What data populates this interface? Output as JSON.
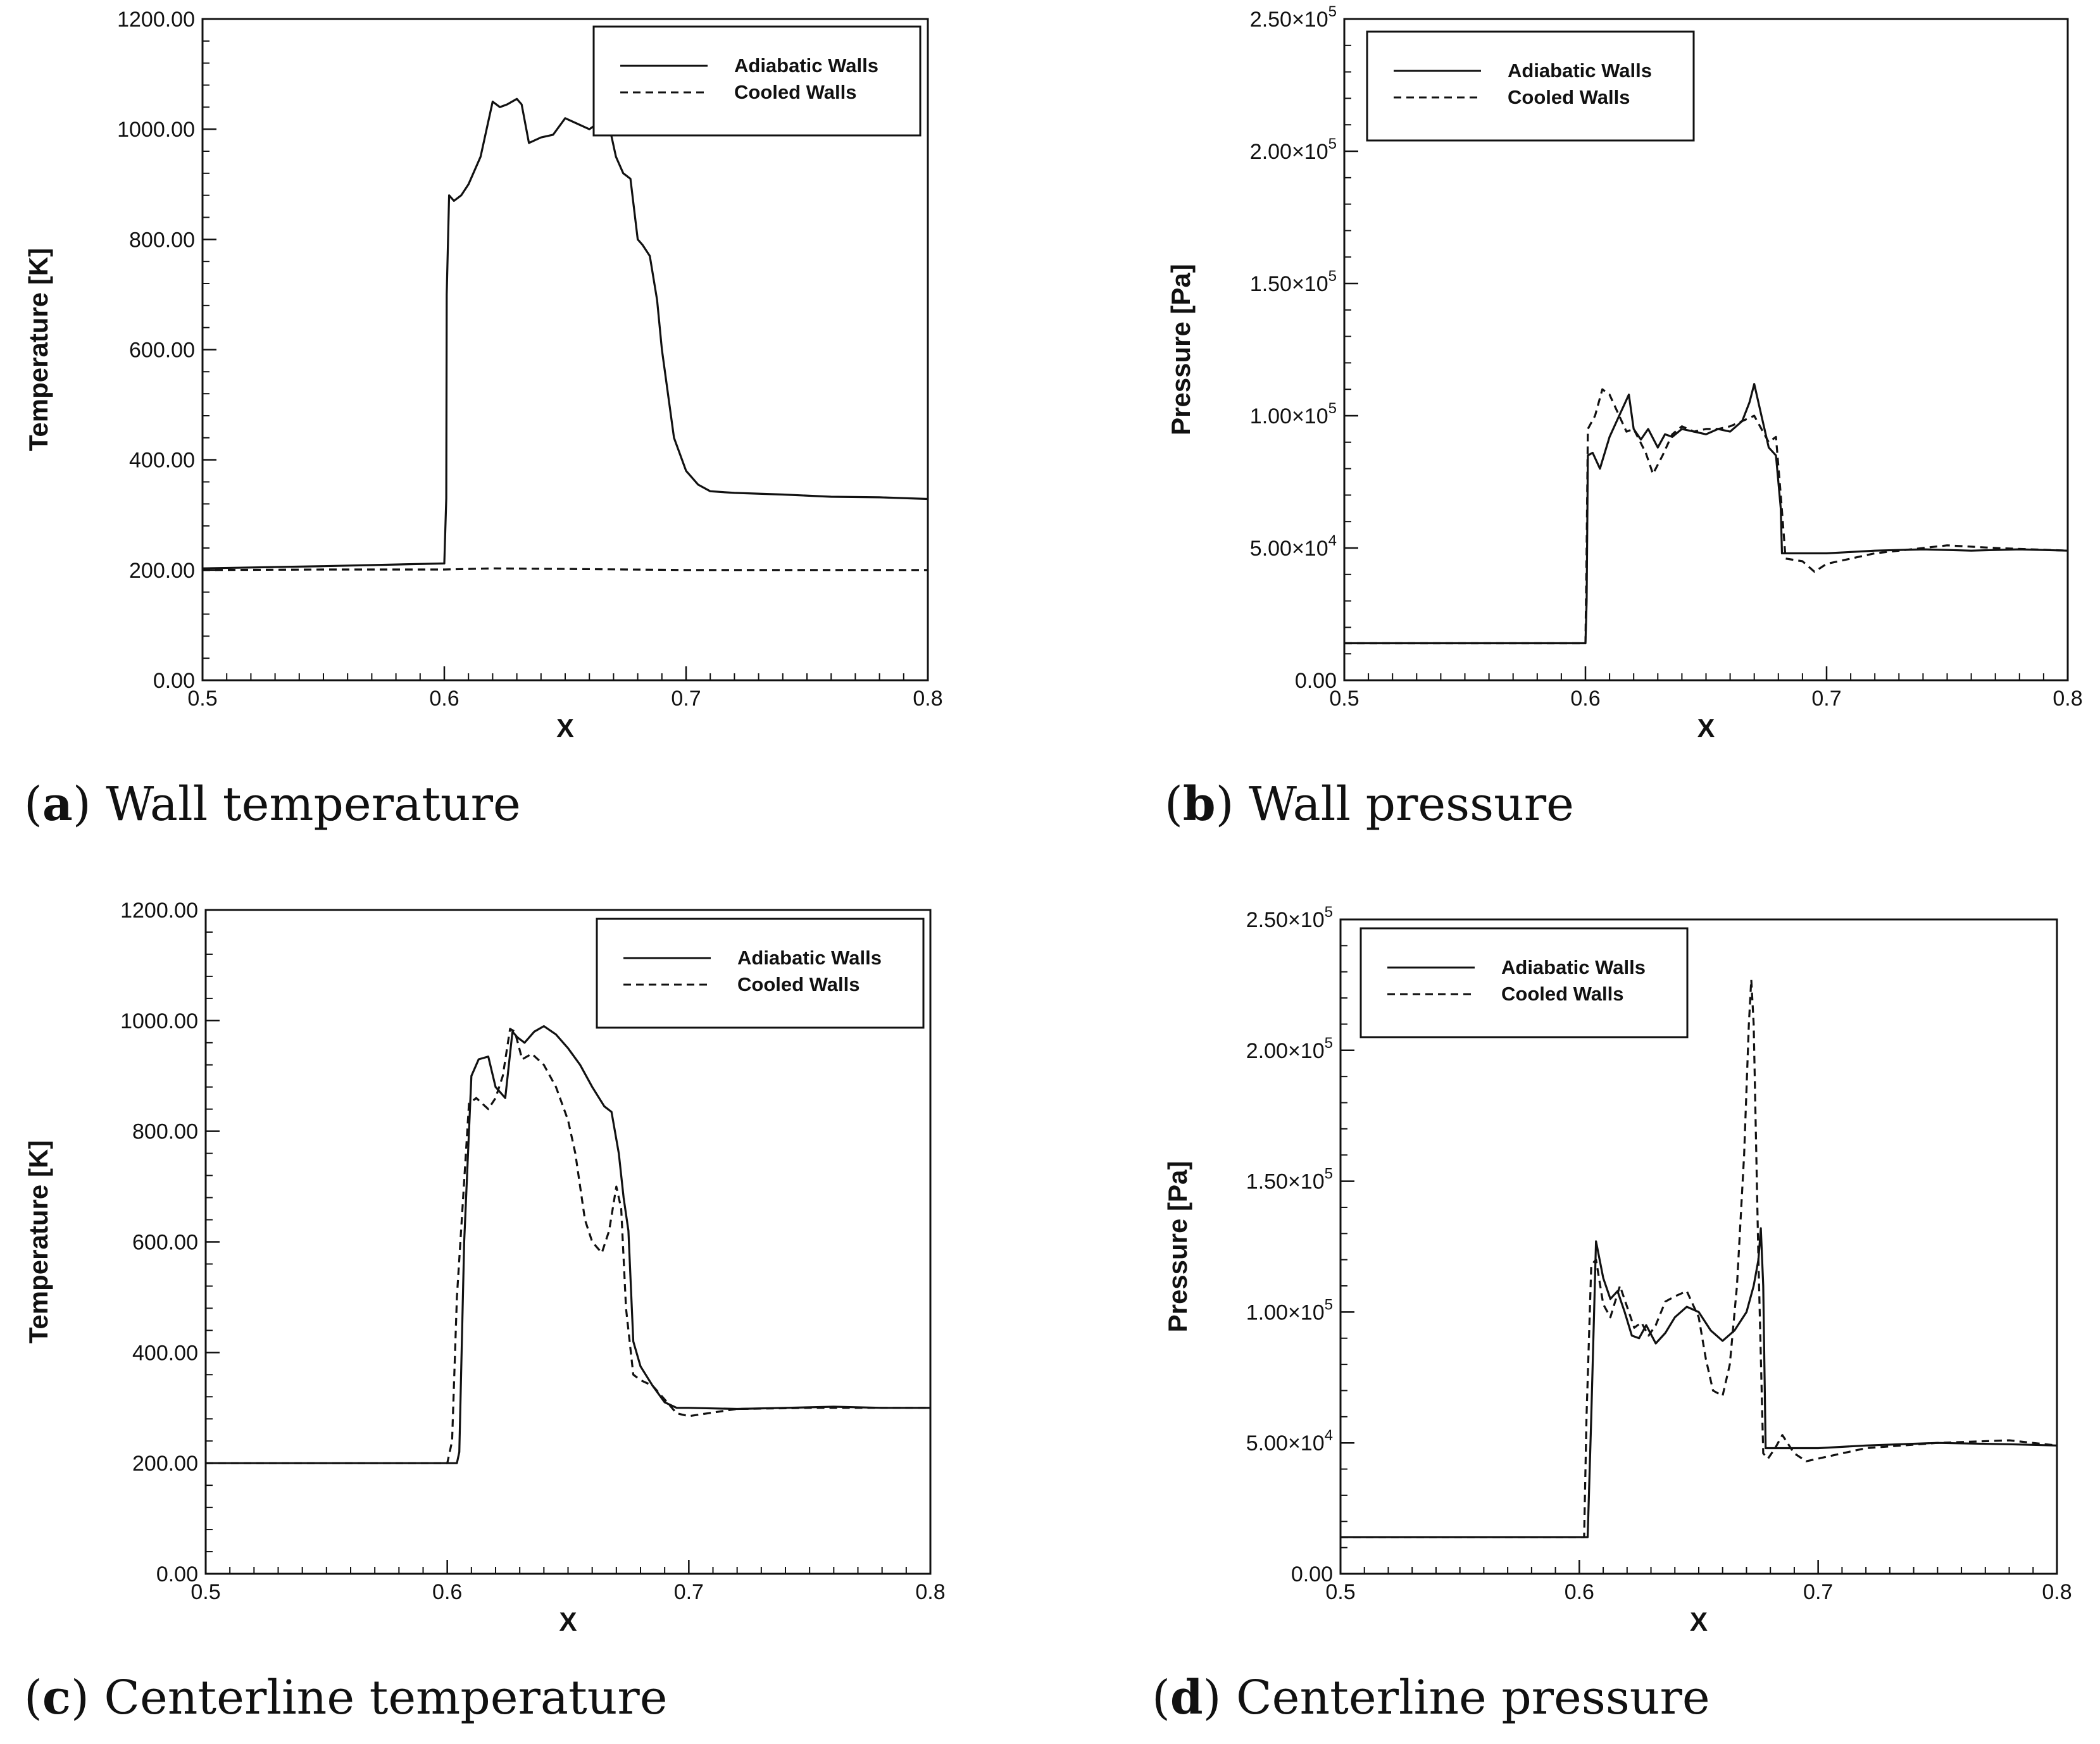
{
  "figure": {
    "captions": [
      {
        "letter": "a",
        "text": "Wall temperature"
      },
      {
        "letter": "b",
        "text": "Wall pressure"
      },
      {
        "letter": "c",
        "text": "Centerline temperature"
      },
      {
        "letter": "d",
        "text": "Centerline pressure"
      }
    ]
  },
  "chart_data": [
    {
      "id": "a",
      "type": "line",
      "title": "",
      "xlabel": "X",
      "ylabel": "Temperature [K]",
      "xlim": [
        0.5,
        0.8
      ],
      "ylim": [
        0,
        1200
      ],
      "xticks": [
        0.5,
        0.6,
        0.7,
        0.8
      ],
      "xtick_labels": [
        "0.5",
        "0.6",
        "0.7",
        "0.8"
      ],
      "yticks": [
        0,
        200,
        400,
        600,
        800,
        1000,
        1200
      ],
      "ytick_labels": [
        "0.00",
        "200.00",
        "400.00",
        "600.00",
        "800.00",
        "1000.00",
        "1200.00"
      ],
      "legend": "top-right",
      "series": [
        {
          "name": "Adiabatic Walls",
          "style": "solid",
          "x": [
            0.5,
            0.55,
            0.6,
            0.6008,
            0.601,
            0.602,
            0.604,
            0.607,
            0.61,
            0.615,
            0.62,
            0.623,
            0.626,
            0.63,
            0.632,
            0.635,
            0.64,
            0.645,
            0.65,
            0.655,
            0.66,
            0.665,
            0.668,
            0.671,
            0.674,
            0.677,
            0.68,
            0.682,
            0.685,
            0.688,
            0.69,
            0.695,
            0.7,
            0.705,
            0.71,
            0.72,
            0.74,
            0.76,
            0.78,
            0.8
          ],
          "y": [
            203,
            207,
            212,
            330,
            700,
            880,
            870,
            880,
            900,
            950,
            1050,
            1040,
            1045,
            1055,
            1045,
            975,
            985,
            990,
            1020,
            1010,
            1000,
            1015,
            1010,
            950,
            920,
            910,
            800,
            790,
            770,
            690,
            600,
            440,
            380,
            355,
            343,
            340,
            337,
            333,
            332,
            329
          ]
        },
        {
          "name": "Cooled Walls",
          "style": "dashed",
          "x": [
            0.5,
            0.55,
            0.6,
            0.62,
            0.65,
            0.7,
            0.75,
            0.8
          ],
          "y": [
            200,
            201,
            201,
            203,
            202,
            200,
            200,
            200
          ]
        }
      ]
    },
    {
      "id": "b",
      "type": "line",
      "title": "",
      "xlabel": "X",
      "ylabel": "Pressure [Pa]",
      "xlim": [
        0.5,
        0.8
      ],
      "ylim": [
        0,
        250000
      ],
      "xticks": [
        0.5,
        0.6,
        0.7,
        0.8
      ],
      "xtick_labels": [
        "0.5",
        "0.6",
        "0.7",
        "0.8"
      ],
      "yticks": [
        0,
        50000,
        100000,
        150000,
        200000,
        250000
      ],
      "ytick_labels": [
        {
          "m": "0.00",
          "e": ""
        },
        {
          "m": "5.00×10",
          "e": "4"
        },
        {
          "m": "1.00×10",
          "e": "5"
        },
        {
          "m": "1.50×10",
          "e": "5"
        },
        {
          "m": "2.00×10",
          "e": "5"
        },
        {
          "m": "2.50×10",
          "e": "5"
        }
      ],
      "legend": "top-left",
      "series": [
        {
          "name": "Adiabatic Walls",
          "style": "solid",
          "x": [
            0.5,
            0.55,
            0.6,
            0.6005,
            0.601,
            0.603,
            0.606,
            0.61,
            0.614,
            0.618,
            0.62,
            0.623,
            0.626,
            0.63,
            0.633,
            0.636,
            0.64,
            0.645,
            0.65,
            0.655,
            0.66,
            0.665,
            0.668,
            0.67,
            0.673,
            0.676,
            0.679,
            0.681,
            0.6815,
            0.69,
            0.7,
            0.72,
            0.74,
            0.76,
            0.78,
            0.8
          ],
          "y": [
            14000,
            14000,
            14000,
            30000,
            85000,
            86000,
            80000,
            92000,
            100000,
            108000,
            95000,
            91000,
            95000,
            88000,
            93000,
            92000,
            95000,
            94000,
            93000,
            95000,
            94000,
            98000,
            105000,
            112000,
            100000,
            88000,
            85000,
            65000,
            48000,
            48000,
            48000,
            49000,
            49500,
            49000,
            49500,
            49000
          ]
        },
        {
          "name": "Cooled Walls",
          "style": "dashed",
          "x": [
            0.5,
            0.55,
            0.6,
            0.6005,
            0.601,
            0.604,
            0.607,
            0.61,
            0.613,
            0.617,
            0.62,
            0.625,
            0.628,
            0.632,
            0.636,
            0.64,
            0.645,
            0.65,
            0.655,
            0.66,
            0.665,
            0.67,
            0.673,
            0.676,
            0.679,
            0.681,
            0.683,
            0.69,
            0.695,
            0.7,
            0.72,
            0.75,
            0.77,
            0.8
          ],
          "y": [
            14000,
            14000,
            14000,
            50000,
            95000,
            100000,
            110000,
            108000,
            102000,
            94000,
            95000,
            86000,
            78000,
            85000,
            93000,
            96000,
            94000,
            95000,
            95000,
            96000,
            98000,
            100000,
            95000,
            90000,
            92000,
            70000,
            46000,
            45000,
            41000,
            44000,
            48000,
            51000,
            50000,
            49000
          ]
        }
      ]
    },
    {
      "id": "c",
      "type": "line",
      "title": "",
      "xlabel": "X",
      "ylabel": "Temperature [K]",
      "xlim": [
        0.5,
        0.8
      ],
      "ylim": [
        0,
        1200
      ],
      "xticks": [
        0.5,
        0.6,
        0.7,
        0.8
      ],
      "xtick_labels": [
        "0.5",
        "0.6",
        "0.7",
        "0.8"
      ],
      "yticks": [
        0,
        200,
        400,
        600,
        800,
        1000,
        1200
      ],
      "ytick_labels": [
        "0.00",
        "200.00",
        "400.00",
        "600.00",
        "800.00",
        "1000.00",
        "1200.00"
      ],
      "legend": "top-right",
      "series": [
        {
          "name": "Adiabatic Walls",
          "style": "solid",
          "x": [
            0.5,
            0.55,
            0.6,
            0.604,
            0.605,
            0.607,
            0.61,
            0.613,
            0.617,
            0.62,
            0.624,
            0.627,
            0.629,
            0.632,
            0.636,
            0.64,
            0.645,
            0.65,
            0.655,
            0.66,
            0.665,
            0.668,
            0.671,
            0.673,
            0.675,
            0.677,
            0.68,
            0.685,
            0.69,
            0.695,
            0.7,
            0.72,
            0.74,
            0.76,
            0.78,
            0.8
          ],
          "y": [
            200,
            200,
            200,
            200,
            220,
            600,
            900,
            930,
            935,
            880,
            860,
            980,
            970,
            960,
            980,
            990,
            975,
            950,
            920,
            880,
            845,
            835,
            760,
            680,
            620,
            420,
            375,
            340,
            310,
            300,
            300,
            298,
            300,
            302,
            300,
            300
          ]
        },
        {
          "name": "Cooled Walls",
          "style": "dashed",
          "x": [
            0.5,
            0.55,
            0.6,
            0.602,
            0.604,
            0.606,
            0.609,
            0.612,
            0.617,
            0.62,
            0.623,
            0.626,
            0.628,
            0.631,
            0.635,
            0.64,
            0.645,
            0.65,
            0.653,
            0.657,
            0.66,
            0.664,
            0.667,
            0.67,
            0.672,
            0.674,
            0.677,
            0.68,
            0.685,
            0.69,
            0.695,
            0.7,
            0.72,
            0.75,
            0.8
          ],
          "y": [
            200,
            200,
            200,
            240,
            500,
            640,
            850,
            860,
            840,
            860,
            900,
            985,
            980,
            930,
            940,
            920,
            880,
            820,
            760,
            640,
            600,
            580,
            620,
            700,
            660,
            480,
            360,
            350,
            340,
            315,
            290,
            285,
            298,
            300,
            300
          ]
        }
      ]
    },
    {
      "id": "d",
      "type": "line",
      "title": "",
      "xlabel": "X",
      "ylabel": "Pressure [Pa]",
      "xlim": [
        0.5,
        0.8
      ],
      "ylim": [
        0,
        250000
      ],
      "xticks": [
        0.5,
        0.6,
        0.7,
        0.8
      ],
      "xtick_labels": [
        "0.5",
        "0.6",
        "0.7",
        "0.8"
      ],
      "yticks": [
        0,
        50000,
        100000,
        150000,
        200000,
        250000
      ],
      "ytick_labels": [
        {
          "m": "0.00",
          "e": ""
        },
        {
          "m": "5.00×10",
          "e": "4"
        },
        {
          "m": "1.00×10",
          "e": "5"
        },
        {
          "m": "1.50×10",
          "e": "5"
        },
        {
          "m": "2.00×10",
          "e": "5"
        },
        {
          "m": "2.50×10",
          "e": "5"
        }
      ],
      "legend": "top-left",
      "series": [
        {
          "name": "Adiabatic Walls",
          "style": "solid",
          "x": [
            0.5,
            0.55,
            0.6,
            0.6035,
            0.605,
            0.607,
            0.61,
            0.613,
            0.616,
            0.619,
            0.622,
            0.625,
            0.628,
            0.632,
            0.636,
            0.64,
            0.645,
            0.65,
            0.655,
            0.66,
            0.665,
            0.67,
            0.673,
            0.675,
            0.676,
            0.677,
            0.678,
            0.68,
            0.69,
            0.7,
            0.72,
            0.75,
            0.78,
            0.8
          ],
          "y": [
            14000,
            14000,
            14000,
            14000,
            60000,
            127000,
            113000,
            105000,
            108000,
            100000,
            91000,
            90000,
            95000,
            88000,
            92000,
            98000,
            102000,
            100000,
            93000,
            89000,
            93000,
            100000,
            110000,
            120000,
            132000,
            110000,
            48000,
            48000,
            48000,
            48000,
            49000,
            50000,
            49500,
            49000
          ]
        },
        {
          "name": "Cooled Walls",
          "style": "dashed",
          "x": [
            0.5,
            0.55,
            0.6,
            0.602,
            0.603,
            0.605,
            0.607,
            0.61,
            0.613,
            0.617,
            0.62,
            0.623,
            0.626,
            0.629,
            0.632,
            0.636,
            0.64,
            0.645,
            0.65,
            0.653,
            0.656,
            0.66,
            0.663,
            0.666,
            0.669,
            0.671,
            0.672,
            0.673,
            0.675,
            0.677,
            0.679,
            0.682,
            0.685,
            0.69,
            0.695,
            0.7,
            0.72,
            0.75,
            0.78,
            0.8
          ],
          "y": [
            14000,
            14000,
            14000,
            14000,
            60000,
            118000,
            120000,
            103000,
            98000,
            110000,
            102000,
            94000,
            96000,
            91000,
            95000,
            104000,
            106000,
            108000,
            98000,
            82000,
            70000,
            68000,
            80000,
            110000,
            160000,
            210000,
            227000,
            210000,
            120000,
            46000,
            44000,
            48000,
            53000,
            46000,
            43000,
            44000,
            48000,
            50000,
            51000,
            49000
          ]
        }
      ]
    }
  ]
}
